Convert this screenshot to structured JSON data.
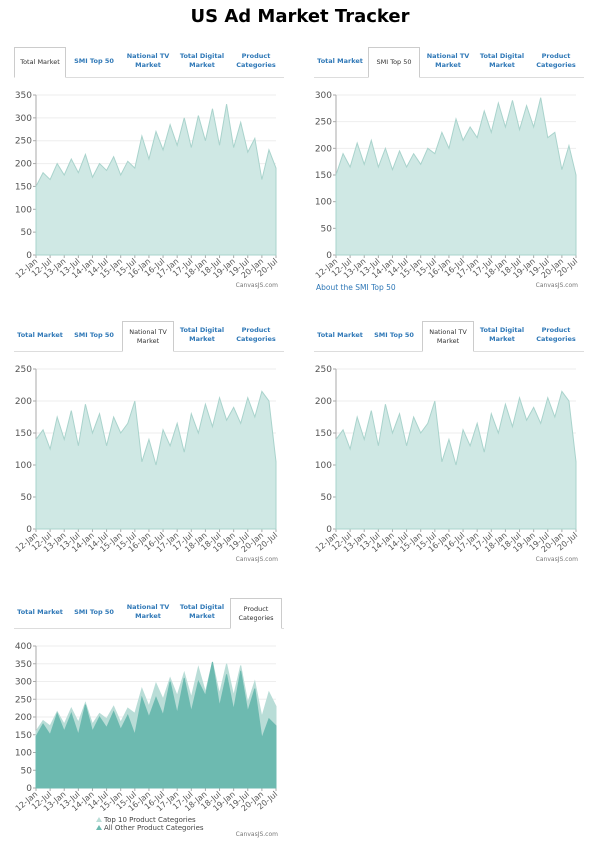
{
  "title": "US Ad Market Tracker",
  "panels": [
    {
      "tabs": [
        "Total Market",
        "SMI Top 50",
        "National TV Market",
        "Total Digital Market",
        "Product Categories"
      ],
      "active": 0
    },
    {
      "tabs": [
        "Total Market",
        "SMI Top 50",
        "National TV Market",
        "Total Digital Market",
        "Product Categories"
      ],
      "active": 1
    },
    {
      "tabs": [
        "Total Market",
        "SMI Top 50",
        "National TV Market",
        "Total Digital Market",
        "Product Categories"
      ],
      "active": 2
    },
    {
      "tabs": [
        "Total Market",
        "SMI Top 50",
        "National TV Market",
        "Total Digital Market",
        "Product Categories"
      ],
      "active": 2
    },
    {
      "tabs": [
        "Total Market",
        "SMI Top 50",
        "National TV Market",
        "Total Digital Market",
        "Product Categories"
      ],
      "active": 4
    }
  ],
  "link": "About the SMI Top 50",
  "watermark": "CanvasJS.com",
  "chart_data": [
    {
      "type": "area",
      "categories": [
        "12-Jan",
        null,
        "12-Jul",
        null,
        "13-Jan",
        null,
        "13-Jul",
        null,
        "14-Jan",
        null,
        "14-Jul",
        null,
        "15-Jan",
        null,
        "15-Jul",
        null,
        "16-Jan",
        null,
        "16-Jul",
        null,
        "17-Jan",
        null,
        "17-Jul",
        null,
        "18-Jan",
        null,
        "18-Jul",
        null,
        "19-Jan",
        null,
        "19-Jul",
        null,
        "20-Jan",
        null,
        "20-Jul"
      ],
      "values": [
        150,
        180,
        165,
        200,
        175,
        210,
        180,
        220,
        170,
        200,
        185,
        215,
        175,
        205,
        190,
        260,
        210,
        270,
        230,
        285,
        240,
        300,
        235,
        305,
        250,
        320,
        240,
        330,
        235,
        290,
        225,
        255,
        165,
        230,
        190
      ],
      "color": "#cfe8e4",
      "ylim": [
        0,
        350
      ],
      "yticks": [
        0,
        50,
        100,
        150,
        200,
        250,
        300,
        350
      ],
      "grid": true
    },
    {
      "type": "area",
      "categories": [
        "12-Jan",
        null,
        "12-Jul",
        null,
        "13-Jan",
        null,
        "13-Jul",
        null,
        "14-Jan",
        null,
        "14-Jul",
        null,
        "15-Jan",
        null,
        "15-Jul",
        null,
        "16-Jan",
        null,
        "16-Jul",
        null,
        "17-Jan",
        null,
        "17-Jul",
        null,
        "18-Jan",
        null,
        "18-Jul",
        null,
        "19-Jan",
        null,
        "19-Jul",
        null,
        "20-Jan",
        null,
        "20-Jul"
      ],
      "values": [
        150,
        190,
        165,
        210,
        170,
        215,
        165,
        200,
        160,
        195,
        165,
        190,
        170,
        200,
        190,
        230,
        200,
        255,
        215,
        240,
        220,
        270,
        230,
        285,
        240,
        290,
        235,
        280,
        240,
        295,
        220,
        230,
        160,
        205,
        150
      ],
      "color": "#cfe8e4",
      "ylim": [
        0,
        300
      ],
      "yticks": [
        0,
        50,
        100,
        150,
        200,
        250,
        300
      ],
      "grid": true
    },
    {
      "type": "area",
      "categories": [
        "12-Jan",
        null,
        "12-Jul",
        null,
        "13-Jan",
        null,
        "13-Jul",
        null,
        "14-Jan",
        null,
        "14-Jul",
        null,
        "15-Jan",
        null,
        "15-Jul",
        null,
        "16-Jan",
        null,
        "16-Jul",
        null,
        "17-Jan",
        null,
        "17-Jul",
        null,
        "18-Jan",
        null,
        "18-Jul",
        null,
        "19-Jan",
        null,
        "19-Jul",
        null,
        "20-Jan",
        null,
        "20-Jul"
      ],
      "values": [
        140,
        155,
        125,
        175,
        140,
        185,
        130,
        195,
        150,
        180,
        130,
        175,
        150,
        165,
        200,
        105,
        140,
        100,
        155,
        130,
        165,
        120,
        180,
        150,
        195,
        160,
        205,
        170,
        190,
        165,
        205,
        175,
        215,
        200,
        105
      ],
      "color": "#cfe8e4",
      "ylim": [
        0,
        250
      ],
      "yticks": [
        0,
        50,
        100,
        150,
        200,
        250
      ],
      "grid": true
    },
    {
      "type": "area",
      "categories": [
        "12-Jan",
        null,
        "12-Jul",
        null,
        "13-Jan",
        null,
        "13-Jul",
        null,
        "14-Jan",
        null,
        "14-Jul",
        null,
        "15-Jan",
        null,
        "15-Jul",
        null,
        "16-Jan",
        null,
        "16-Jul",
        null,
        "17-Jan",
        null,
        "17-Jul",
        null,
        "18-Jan",
        null,
        "18-Jul",
        null,
        "19-Jan",
        null,
        "19-Jul",
        null,
        "20-Jan",
        null,
        "20-Jul"
      ],
      "values": [
        140,
        155,
        125,
        175,
        140,
        185,
        130,
        195,
        150,
        180,
        130,
        175,
        150,
        165,
        200,
        105,
        140,
        100,
        155,
        130,
        165,
        120,
        180,
        150,
        195,
        160,
        205,
        170,
        190,
        165,
        205,
        175,
        215,
        200,
        105
      ],
      "color": "#cfe8e4",
      "ylim": [
        0,
        250
      ],
      "yticks": [
        0,
        50,
        100,
        150,
        200,
        250
      ],
      "grid": true
    },
    {
      "type": "area",
      "categories": [
        "12-Jan",
        null,
        "12-Jul",
        null,
        "13-Jan",
        null,
        "13-Jul",
        null,
        "14-Jan",
        null,
        "14-Jul",
        null,
        "15-Jan",
        null,
        "15-Jul",
        null,
        "16-Jan",
        null,
        "16-Jul",
        null,
        "17-Jan",
        null,
        "17-Jul",
        null,
        "18-Jan",
        null,
        "18-Jul",
        null,
        "19-Jan",
        null,
        "19-Jul",
        null,
        "20-Jan",
        null,
        "20-Jul"
      ],
      "series": [
        {
          "name": "Top 10 Product Categories",
          "color": "#b9ddd7",
          "values": [
            160,
            190,
            175,
            215,
            180,
            225,
            185,
            240,
            180,
            210,
            195,
            230,
            185,
            225,
            210,
            280,
            230,
            295,
            250,
            310,
            260,
            325,
            255,
            340,
            270,
            355,
            265,
            350,
            260,
            345,
            240,
            300,
            200,
            270,
            230
          ]
        },
        {
          "name": "All Other Product Categories",
          "color": "#6dbab0",
          "values": [
            145,
            180,
            150,
            210,
            160,
            210,
            150,
            235,
            160,
            200,
            170,
            215,
            165,
            205,
            150,
            255,
            200,
            255,
            205,
            300,
            210,
            310,
            215,
            300,
            260,
            355,
            230,
            320,
            220,
            330,
            215,
            280,
            140,
            195,
            175
          ]
        }
      ],
      "ylim": [
        0,
        400
      ],
      "yticks": [
        0,
        50,
        100,
        150,
        200,
        250,
        300,
        350,
        400
      ],
      "grid": true,
      "legend": "bottom"
    }
  ]
}
